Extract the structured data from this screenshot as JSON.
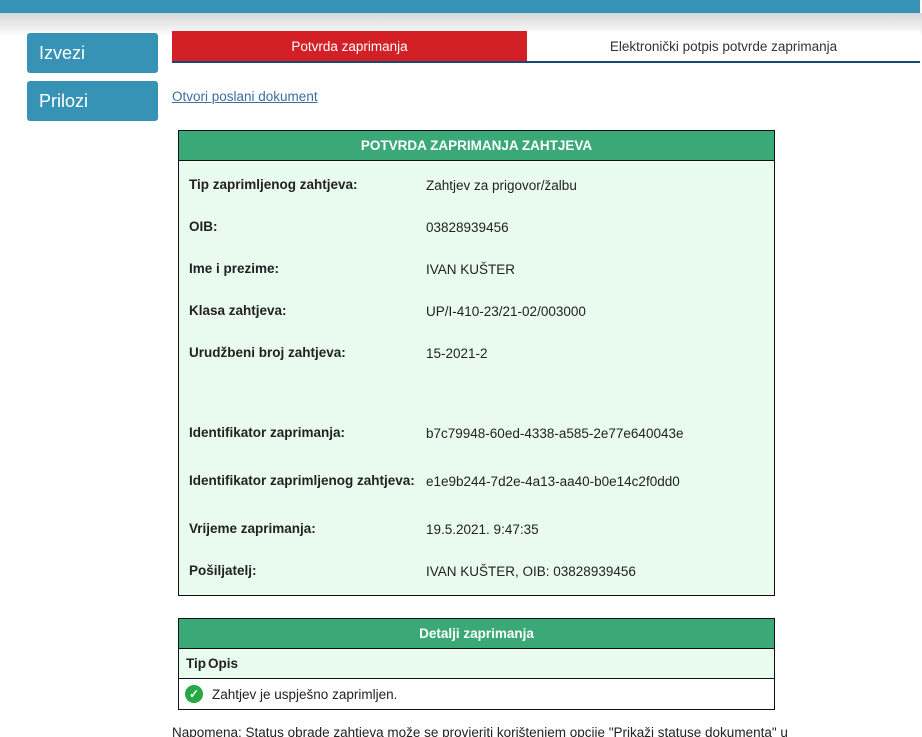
{
  "topbar": {
    "color": "#3793b5"
  },
  "sidebar": {
    "buttons": [
      {
        "label": "Izvezi"
      },
      {
        "label": "Prilozi"
      }
    ]
  },
  "tabs": {
    "active_label": "Potvrda zaprimanja",
    "inactive_label": "Elektronički potpis potvrde zaprimanja"
  },
  "link": {
    "label": "Otvori poslani dokument"
  },
  "receipt_table": {
    "title": "POTVRDA ZAPRIMANJA ZAHTJEVA",
    "rows": [
      {
        "label": "Tip zaprimljenog zahtjeva:",
        "value": "Zahtjev za prigovor/žalbu"
      },
      {
        "label": "OIB:",
        "value": "03828939456"
      },
      {
        "label": "Ime i prezime:",
        "value": "IVAN KUŠTER"
      },
      {
        "label": "Klasa zahtjeva:",
        "value": "UP/I-410-23/21-02/003000"
      },
      {
        "label": "Urudžbeni broj zahtjeva:",
        "value": "15-2021-2"
      },
      {
        "label": "Identifikator zaprimanja:",
        "value": "b7c79948-60ed-4338-a585-2e77e640043e"
      },
      {
        "label": "Identifikator zaprimljenog zahtjeva:",
        "value": "e1e9b244-7d2e-4a13-aa40-b0e14c2f0dd0"
      },
      {
        "label": "Vrijeme zaprimanja:",
        "value": "19.5.2021. 9:47:35"
      },
      {
        "label": "Pošiljatelj:",
        "value": "IVAN KUŠTER, OIB: 03828939456"
      }
    ]
  },
  "details_table": {
    "title": "Detalji zaprimanja",
    "columns": [
      "Tip",
      "Opis"
    ],
    "rows": [
      {
        "icon": "success-check",
        "description": "Zahtjev je uspješno zaprimljen."
      }
    ]
  },
  "icons": {
    "success_check": "✓"
  },
  "note": "Napomena: Status obrade zahtjeva može se provjeriti korištenjem opcije \"Prikaži statuse dokumenta\" u",
  "colors": {
    "teal": "#3793b5",
    "tab_active_red": "#d32027",
    "tab_underline_navy": "#1a4a73",
    "table_header_green": "#3aa877",
    "table_body_light_green": "#e9faee",
    "link_blue": "#3c6e9f",
    "check_green": "#28a745"
  }
}
